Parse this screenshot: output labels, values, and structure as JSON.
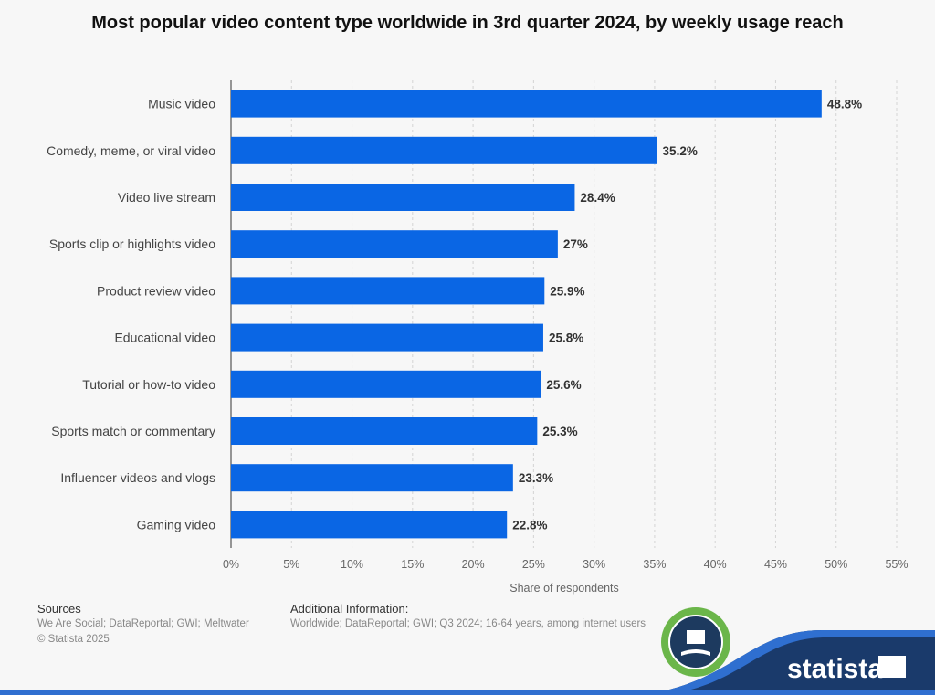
{
  "chart_data": {
    "type": "bar",
    "orientation": "horizontal",
    "title": "Most popular video content type worldwide in 3rd quarter 2024, by weekly usage reach",
    "xlabel": "Share of respondents",
    "ylabel": "",
    "categories": [
      "Music video",
      "Comedy, meme, or viral video",
      "Video live stream",
      "Sports clip or highlights video",
      "Product review video",
      "Educational video",
      "Tutorial or how-to video",
      "Sports match or commentary",
      "Influencer videos and vlogs",
      "Gaming video"
    ],
    "values": [
      48.8,
      35.2,
      28.4,
      27,
      25.9,
      25.8,
      25.6,
      25.3,
      23.3,
      22.8
    ],
    "data_labels": [
      "48.8%",
      "35.2%",
      "28.4%",
      "27%",
      "25.9%",
      "25.8%",
      "25.6%",
      "25.3%",
      "23.3%",
      "22.8%"
    ],
    "xlim": [
      0,
      55
    ],
    "ticks": [
      "0%",
      "5%",
      "10%",
      "15%",
      "20%",
      "25%",
      "30%",
      "35%",
      "40%",
      "45%",
      "50%",
      "55%"
    ],
    "grid": true,
    "bar_color": "#0a66e4"
  },
  "footer": {
    "sources_heading": "Sources",
    "sources_text": "We Are Social; DataReportal; GWI; Meltwater",
    "copyright": "© Statista 2025",
    "additional_heading": "Additional Information:",
    "additional_text": "Worldwide; DataReportal; GWI; Q3 2024; 16-64 years, among internet users",
    "logo": "statista"
  }
}
